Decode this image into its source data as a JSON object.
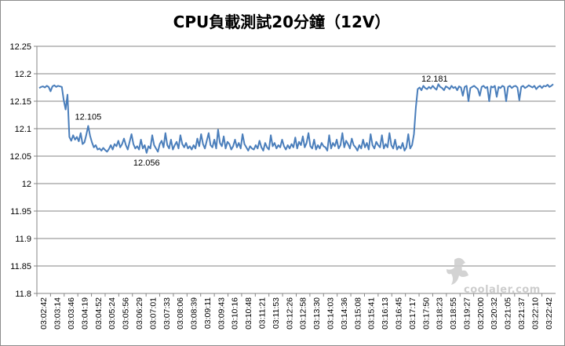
{
  "chart_data": {
    "type": "line",
    "title": "CPU負載測試20分鐘（12V）",
    "ylim": [
      11.8,
      12.25
    ],
    "yticks": [
      "11.8",
      "11.85",
      "11.9",
      "11.95",
      "12",
      "12.05",
      "12.1",
      "12.15",
      "12.2",
      "12.25"
    ],
    "x_tick_labels": [
      "03:02:42",
      "03:03:14",
      "03:03:46",
      "03:04:19",
      "03:04:52",
      "03:05:24",
      "03:05:56",
      "03:06:29",
      "03:07:01",
      "03:07:33",
      "03:08:06",
      "03:08:39",
      "03:09:11",
      "03:09:43",
      "03:10:16",
      "03:10:48",
      "03:11:21",
      "03:11:53",
      "03:12:26",
      "03:12:58",
      "03:13:30",
      "03:14:03",
      "03:14:36",
      "03:15:08",
      "03:15:41",
      "03:16:13",
      "03:16:45",
      "03:17:17",
      "03:17:50",
      "03:18:23",
      "03:18:55",
      "03:19:27",
      "03:20:00",
      "03:20:32",
      "03:21:05",
      "03:21:37",
      "03:22:10",
      "03:22:42"
    ],
    "grid": true,
    "legend": "none",
    "line_color": "#4a7ebb",
    "series": [
      {
        "values": [
          12.174,
          12.176,
          12.177,
          12.175,
          12.178,
          12.176,
          12.168,
          12.177,
          12.179,
          12.176,
          12.178,
          12.177,
          12.176,
          12.152,
          12.135,
          12.162,
          12.085,
          12.078,
          12.088,
          12.08,
          12.085,
          12.077,
          12.092,
          12.072,
          12.075,
          12.089,
          12.105,
          12.087,
          12.075,
          12.066,
          12.07,
          12.062,
          12.064,
          12.06,
          12.065,
          12.061,
          12.058,
          12.063,
          12.07,
          12.062,
          12.072,
          12.068,
          12.078,
          12.066,
          12.072,
          12.082,
          12.07,
          12.062,
          12.076,
          12.09,
          12.072,
          12.064,
          12.068,
          12.062,
          12.08,
          12.064,
          12.07,
          12.056,
          12.068,
          12.064,
          12.088,
          12.07,
          12.064,
          12.058,
          12.072,
          12.078,
          12.066,
          12.092,
          12.07,
          12.064,
          12.08,
          12.062,
          12.07,
          12.076,
          12.064,
          12.088,
          12.072,
          12.066,
          12.074,
          12.064,
          12.068,
          12.062,
          12.07,
          12.064,
          12.082,
          12.068,
          12.09,
          12.072,
          12.064,
          12.078,
          12.092,
          12.07,
          12.066,
          12.08,
          12.064,
          12.098,
          12.074,
          12.068,
          12.086,
          12.064,
          12.076,
          12.072,
          12.062,
          12.068,
          12.08,
          12.066,
          12.074,
          12.064,
          12.09,
          12.072,
          12.066,
          12.06,
          12.068,
          12.064,
          12.062,
          12.07,
          12.064,
          12.078,
          12.066,
          12.06,
          12.074,
          12.066,
          12.062,
          12.088,
          12.068,
          12.074,
          12.064,
          12.07,
          12.066,
          12.08,
          12.068,
          12.062,
          12.07,
          12.064,
          12.072,
          12.066,
          12.084,
          12.064,
          12.076,
          12.07,
          12.086,
          12.066,
          12.074,
          12.092,
          12.068,
          12.064,
          12.08,
          12.062,
          12.07,
          12.064,
          12.074,
          12.068,
          12.066,
          12.06,
          12.088,
          12.064,
          12.074,
          12.068,
          12.08,
          12.064,
          12.07,
          12.092,
          12.066,
          12.078,
          12.072,
          12.064,
          12.082,
          12.07,
          12.066,
          12.06,
          12.07,
          12.064,
          12.08,
          12.066,
          12.074,
          12.062,
          12.09,
          12.07,
          12.064,
          12.076,
          12.07,
          12.066,
          12.088,
          12.064,
          12.072,
          12.066,
          12.092,
          12.07,
          12.064,
          12.08,
          12.062,
          12.068,
          12.064,
          12.074,
          12.06,
          12.066,
          12.09,
          12.064,
          12.07,
          12.09,
          12.138,
          12.172,
          12.175,
          12.17,
          12.178,
          12.174,
          12.172,
          12.176,
          12.173,
          12.178,
          12.174,
          12.171,
          12.181,
          12.176,
          12.174,
          12.17,
          12.177,
          12.175,
          12.172,
          12.178,
          12.174,
          12.176,
          12.17,
          12.177,
          12.175,
          12.16,
          12.176,
          12.178,
          12.15,
          12.174,
          12.176,
          12.178,
          12.175,
          12.172,
          12.16,
          12.176,
          12.178,
          12.174,
          12.176,
          12.15,
          12.177,
          12.175,
          12.178,
          12.158,
          12.176,
          12.174,
          12.178,
          12.176,
          12.15,
          12.176,
          12.178,
          12.174,
          12.177,
          12.178,
          12.175,
          12.152,
          12.176,
          12.178,
          12.174,
          12.176,
          12.179,
          12.177,
          12.175,
          12.178,
          12.172,
          12.176,
          12.178,
          12.174,
          12.178,
          12.177,
          12.18,
          12.176,
          12.178,
          12.181
        ]
      }
    ],
    "annotations": [
      {
        "text": "12.105",
        "index": 26
      },
      {
        "text": "12.056",
        "index": 57
      },
      {
        "text": "12.181",
        "index": 210
      }
    ]
  },
  "watermark": "coolaler.com"
}
